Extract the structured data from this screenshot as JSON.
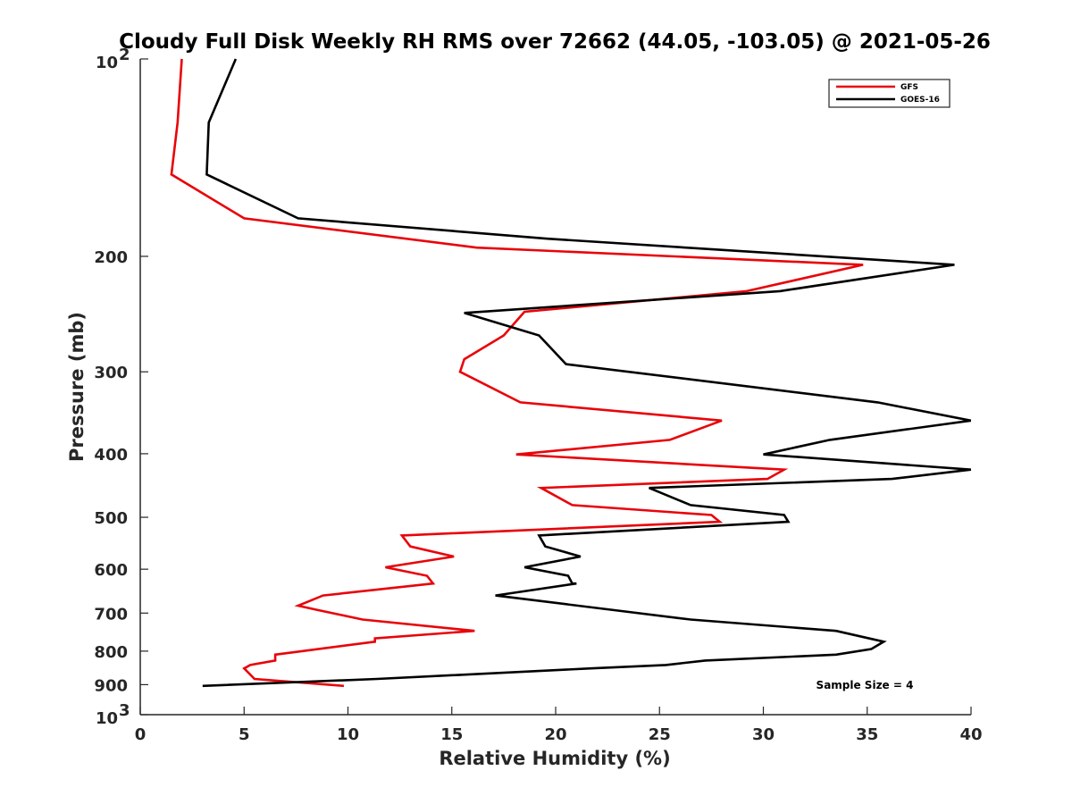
{
  "chart_data": {
    "type": "line",
    "title": "Cloudy Full Disk Weekly RH RMS over 72662 (44.05, -103.05) @ 2021-05-26",
    "xlabel": "Relative Humidity (%)",
    "ylabel": "Pressure (mb)",
    "xlim": [
      0,
      40
    ],
    "ylim": [
      100,
      1000
    ],
    "yscale": "log",
    "yreversed": true,
    "grid": false,
    "legend_position": "top-right",
    "x_ticks": [
      "0",
      "5",
      "10",
      "15",
      "20",
      "25",
      "30",
      "35",
      "40"
    ],
    "y_ticks": [
      {
        "value": 200,
        "label": "200"
      },
      {
        "value": 300,
        "label": "300"
      },
      {
        "value": 400,
        "label": "400"
      },
      {
        "value": 500,
        "label": "500"
      },
      {
        "value": 600,
        "label": "600"
      },
      {
        "value": 700,
        "label": "700"
      },
      {
        "value": 800,
        "label": "800"
      },
      {
        "value": 900,
        "label": "900"
      }
    ],
    "y_decade_labels": [
      {
        "value": 100,
        "base": "10",
        "exp": "2"
      },
      {
        "value": 1000,
        "base": "10",
        "exp": "3"
      }
    ],
    "annotation": "Sample Size = 4",
    "series": [
      {
        "name": "GFS",
        "color": "#e8040a",
        "points": [
          [
            2.0,
            100
          ],
          [
            1.8,
            125
          ],
          [
            1.5,
            150
          ],
          [
            5.0,
            175
          ],
          [
            16.2,
            194
          ],
          [
            34.8,
            206
          ],
          [
            29.2,
            226
          ],
          [
            18.5,
            243
          ],
          [
            17.5,
            264
          ],
          [
            15.6,
            287
          ],
          [
            15.4,
            300
          ],
          [
            18.3,
            334
          ],
          [
            28.0,
            356
          ],
          [
            25.5,
            381
          ],
          [
            18.1,
            401
          ],
          [
            31.0,
            423
          ],
          [
            30.2,
            437
          ],
          [
            19.3,
            451
          ],
          [
            20.8,
            479
          ],
          [
            27.5,
            496
          ],
          [
            27.9,
            508
          ],
          [
            12.6,
            533
          ],
          [
            13.0,
            554
          ],
          [
            15.1,
            574
          ],
          [
            11.8,
            596
          ],
          [
            13.8,
            614
          ],
          [
            14.1,
            631
          ],
          [
            8.8,
            658
          ],
          [
            7.6,
            682
          ],
          [
            8.5,
            692
          ],
          [
            10.7,
            716
          ],
          [
            16.1,
            745
          ],
          [
            11.3,
            765
          ],
          [
            11.3,
            774
          ],
          [
            6.5,
            810
          ],
          [
            6.5,
            827
          ],
          [
            5.3,
            840
          ],
          [
            5.0,
            850
          ],
          [
            5.5,
            882
          ],
          [
            9.8,
            904
          ]
        ]
      },
      {
        "name": "GOES-16",
        "color": "#000000",
        "points": [
          [
            4.6,
            100
          ],
          [
            3.3,
            125
          ],
          [
            3.2,
            150
          ],
          [
            7.6,
            175
          ],
          [
            19.6,
            188
          ],
          [
            39.2,
            206
          ],
          [
            30.8,
            226
          ],
          [
            15.6,
            244
          ],
          [
            19.2,
            264
          ],
          [
            20.5,
            292
          ],
          [
            35.5,
            334
          ],
          [
            40.0,
            356
          ],
          [
            33.2,
            381
          ],
          [
            30.0,
            401
          ],
          [
            40.0,
            423
          ],
          [
            36.2,
            437
          ],
          [
            24.5,
            451
          ],
          [
            26.5,
            479
          ],
          [
            31.0,
            496
          ],
          [
            31.2,
            508
          ],
          [
            19.2,
            533
          ],
          [
            19.5,
            554
          ],
          [
            21.2,
            574
          ],
          [
            18.5,
            596
          ],
          [
            20.6,
            614
          ],
          [
            20.8,
            631
          ],
          [
            21.0,
            631
          ],
          [
            17.1,
            658
          ],
          [
            26.5,
            716
          ],
          [
            33.5,
            745
          ],
          [
            35.8,
            774
          ],
          [
            35.2,
            794
          ],
          [
            33.5,
            810
          ],
          [
            27.2,
            827
          ],
          [
            25.3,
            840
          ],
          [
            21.7,
            850
          ],
          [
            11.4,
            882
          ],
          [
            3.0,
            904
          ]
        ]
      }
    ]
  }
}
